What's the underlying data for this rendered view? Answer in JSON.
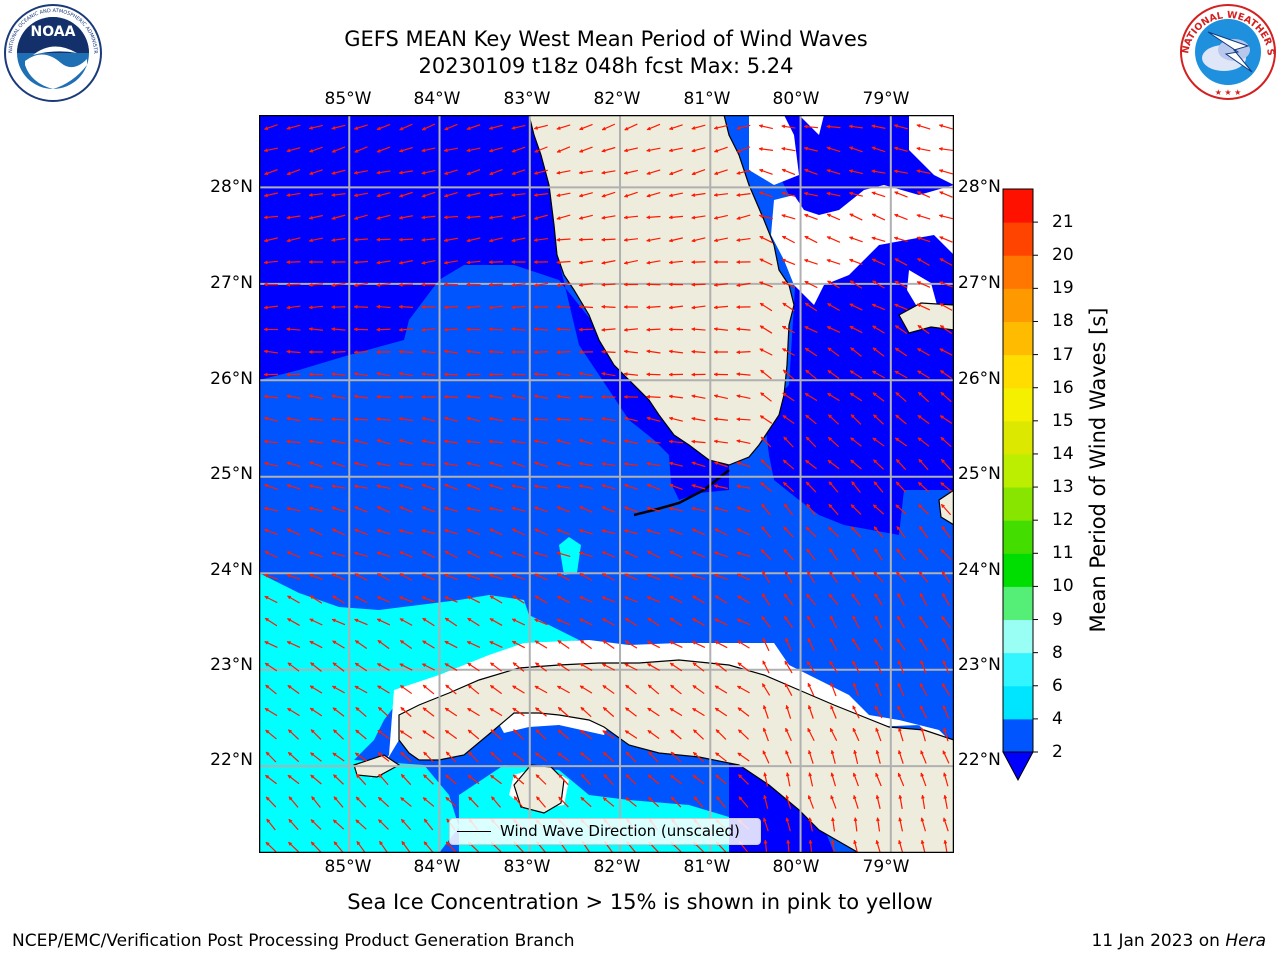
{
  "title": {
    "line1": "GEFS MEAN Key West Mean Period of Wind Waves",
    "line2": "20230109 t18z 048h fcst   Max: 5.24"
  },
  "logos": {
    "left": "NOAA",
    "right": "NATIONAL WEATHER SERVICE",
    "left_ring": "NATIONAL OCEANIC AND ATMOSPHERIC ADMINISTRATION · U.S. DEPARTMENT OF COMMERCE"
  },
  "map": {
    "lon_labels": [
      "85°W",
      "84°W",
      "83°W",
      "82°W",
      "81°W",
      "80°W",
      "79°W"
    ],
    "lat_labels": [
      "28°N",
      "27°N",
      "26°N",
      "25°N",
      "24°N",
      "23°N",
      "22°N"
    ],
    "lon_range": [
      -86.0,
      -78.3
    ],
    "lat_range": [
      21.1,
      28.75
    ],
    "gridlines": true,
    "arrow_color": "#ff0000",
    "land_color": "#eeecdc",
    "coast_color": "#000000"
  },
  "legend": {
    "label": "Wind Wave Direction (unscaled)",
    "placement": "bottom-center"
  },
  "colorbar": {
    "label": "Mean Period of Wind Waves [s]",
    "ticks": [
      "2",
      "4",
      "6",
      "8",
      "9",
      "10",
      "11",
      "12",
      "13",
      "14",
      "15",
      "16",
      "17",
      "18",
      "19",
      "20",
      "21"
    ],
    "colors": [
      "#0055ff",
      "#00e5ff",
      "#33f5ff",
      "#99fff5",
      "#55ef77",
      "#00dd00",
      "#44dd00",
      "#88e500",
      "#bbee00",
      "#dde800",
      "#f5f000",
      "#ffdd00",
      "#ffbb00",
      "#ff9900",
      "#ff7700",
      "#ff4400",
      "#ff1100"
    ],
    "under_color": "#0000ff"
  },
  "footnote": "Sea Ice Concentration > 15% is shown in pink to yellow",
  "credit_left": "NCEP/EMC/Verification Post Processing Product Generation Branch",
  "credit_right_date": "11 Jan 2023 on ",
  "credit_right_host": "Hera"
}
